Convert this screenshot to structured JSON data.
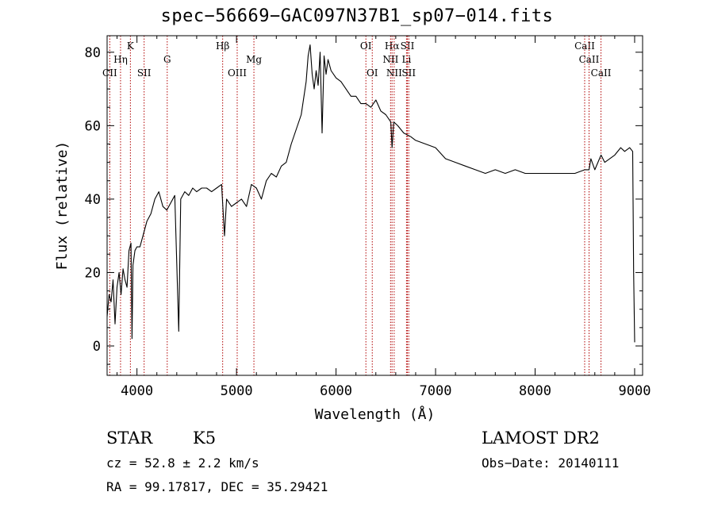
{
  "title": "spec−56669−GAC097N37B1_sp07−014.fits",
  "info": {
    "class_label": "STAR",
    "subclass": "K5",
    "redshift": "cz = 52.8 ± 2.2 km/s",
    "coords": "RA =  99.17817, DEC =  35.29421",
    "survey": "LAMOST DR2",
    "obs_date": "Obs−Date: 20140111"
  },
  "colors": {
    "spectrum": "#000000",
    "line_marker": "#b00000"
  },
  "chart_data": {
    "type": "line",
    "xlabel": "Wavelength (Å)",
    "ylabel": "Flux (relative)",
    "xlim": [
      3700,
      9080
    ],
    "ylim": [
      -8,
      84.5
    ],
    "xticks": [
      4000,
      5000,
      6000,
      7000,
      8000,
      9000
    ],
    "yticks": [
      0,
      20,
      40,
      60,
      80
    ],
    "series": [
      {
        "x": [
          3700,
          3720,
          3740,
          3760,
          3780,
          3800,
          3820,
          3840,
          3860,
          3880,
          3900,
          3920,
          3940,
          3950,
          3960,
          3980,
          4000,
          4030,
          4060,
          4100,
          4140,
          4180,
          4220,
          4260,
          4300,
          4340,
          4380,
          4420,
          4440,
          4480,
          4520,
          4560,
          4600,
          4650,
          4700,
          4750,
          4800,
          4850,
          4880,
          4900,
          4950,
          5000,
          5050,
          5100,
          5150,
          5200,
          5250,
          5300,
          5350,
          5400,
          5450,
          5500,
          5550,
          5600,
          5650,
          5700,
          5720,
          5740,
          5760,
          5780,
          5800,
          5820,
          5840,
          5860,
          5880,
          5900,
          5920,
          5950,
          6000,
          6050,
          6100,
          6150,
          6200,
          6250,
          6300,
          6350,
          6400,
          6450,
          6500,
          6550,
          6563,
          6580,
          6620,
          6680,
          6750,
          6800,
          6900,
          7000,
          7100,
          7200,
          7300,
          7400,
          7500,
          7600,
          7700,
          7800,
          7900,
          8000,
          8100,
          8200,
          8300,
          8400,
          8500,
          8542,
          8560,
          8600,
          8662,
          8700,
          8800,
          8860,
          8900,
          8950,
          8980,
          8990,
          9000
        ],
        "values": [
          8,
          14,
          12,
          18,
          6,
          16,
          20,
          14,
          21,
          18,
          16,
          26,
          28,
          2,
          22,
          26,
          27,
          27,
          30,
          34,
          36,
          40,
          42,
          38,
          37,
          39,
          41,
          4,
          40,
          42,
          41,
          43,
          42,
          43,
          43,
          42,
          43,
          44,
          30,
          40,
          38,
          39,
          40,
          38,
          44,
          43,
          40,
          45,
          47,
          46,
          49,
          50,
          55,
          59,
          63,
          72,
          79,
          82,
          74,
          70,
          75,
          71,
          80,
          58,
          79,
          74,
          78,
          75,
          73,
          72,
          70,
          68,
          68,
          66,
          66,
          65,
          67,
          64,
          63,
          61,
          54,
          61,
          60,
          58,
          57,
          56,
          55,
          54,
          51,
          50,
          49,
          48,
          47,
          48,
          47,
          48,
          47,
          47,
          47,
          47,
          47,
          47,
          48,
          48,
          51,
          48,
          52,
          50,
          52,
          54,
          53,
          54,
          53,
          20,
          1
        ]
      }
    ],
    "line_labels": [
      {
        "name": "CII",
        "wl": 3727,
        "row": 3
      },
      {
        "name": "Hη",
        "wl": 3835,
        "row": 2
      },
      {
        "name": "K",
        "wl": 3934,
        "row": 1
      },
      {
        "name": "SII",
        "wl": 4072,
        "row": 3
      },
      {
        "name": "G",
        "wl": 4304,
        "row": 2
      },
      {
        "name": "Hβ",
        "wl": 4861,
        "row": 1
      },
      {
        "name": "OIII",
        "wl": 5007,
        "row": 3
      },
      {
        "name": "Mg",
        "wl": 5175,
        "row": 2
      },
      {
        "name": "OI",
        "wl": 6300,
        "row": 1
      },
      {
        "name": "OI",
        "wl": 6364,
        "row": 3
      },
      {
        "name": "Hα",
        "wl": 6563,
        "row": 1
      },
      {
        "name": "NII",
        "wl": 6548,
        "row": 2
      },
      {
        "name": "NII",
        "wl": 6584,
        "row": 3
      },
      {
        "name": "SII",
        "wl": 6717,
        "row": 1
      },
      {
        "name": "Li",
        "wl": 6708,
        "row": 2
      },
      {
        "name": "SII",
        "wl": 6731,
        "row": 3
      },
      {
        "name": "CaII",
        "wl": 8498,
        "row": 1
      },
      {
        "name": "CaII",
        "wl": 8542,
        "row": 2
      },
      {
        "name": "CaII",
        "wl": 8662,
        "row": 3
      }
    ]
  }
}
